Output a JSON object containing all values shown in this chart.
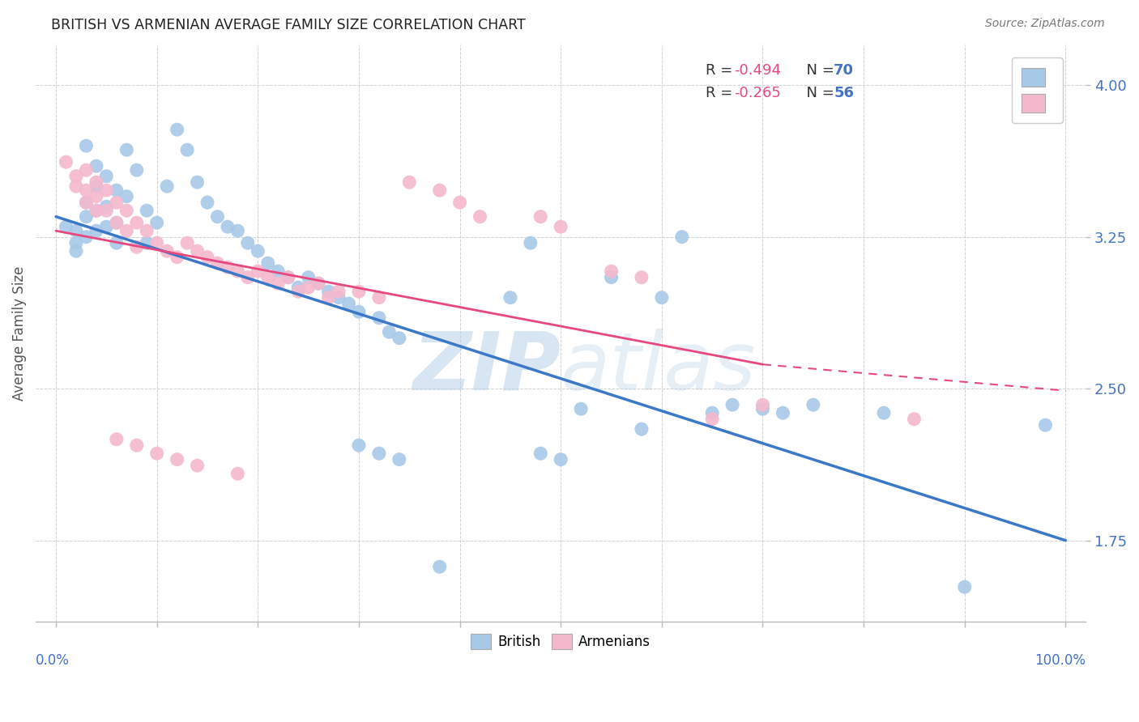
{
  "title": "BRITISH VS ARMENIAN AVERAGE FAMILY SIZE CORRELATION CHART",
  "source": "Source: ZipAtlas.com",
  "ylabel": "Average Family Size",
  "yticks": [
    1.75,
    2.5,
    3.25,
    4.0
  ],
  "xlim": [
    -0.02,
    1.02
  ],
  "ylim": [
    1.35,
    4.2
  ],
  "british_color": "#a8c8e8",
  "armenian_color": "#f4b8cc",
  "british_line_color": "#3c78c8",
  "armenian_line_color": "#e84880",
  "ytick_color": "#4472c4",
  "legend_text_color": "#222222",
  "legend_R_color": "#e84880",
  "legend_N_color": "#4472c4",
  "british_scatter": [
    [
      0.01,
      3.3
    ],
    [
      0.02,
      3.28
    ],
    [
      0.02,
      3.22
    ],
    [
      0.02,
      3.18
    ],
    [
      0.03,
      3.7
    ],
    [
      0.03,
      3.42
    ],
    [
      0.03,
      3.35
    ],
    [
      0.03,
      3.25
    ],
    [
      0.04,
      3.6
    ],
    [
      0.04,
      3.5
    ],
    [
      0.04,
      3.38
    ],
    [
      0.04,
      3.28
    ],
    [
      0.05,
      3.55
    ],
    [
      0.05,
      3.4
    ],
    [
      0.05,
      3.3
    ],
    [
      0.06,
      3.48
    ],
    [
      0.06,
      3.32
    ],
    [
      0.06,
      3.22
    ],
    [
      0.07,
      3.68
    ],
    [
      0.07,
      3.45
    ],
    [
      0.08,
      3.58
    ],
    [
      0.09,
      3.38
    ],
    [
      0.09,
      3.22
    ],
    [
      0.1,
      3.32
    ],
    [
      0.11,
      3.5
    ],
    [
      0.12,
      3.78
    ],
    [
      0.13,
      3.68
    ],
    [
      0.14,
      3.52
    ],
    [
      0.15,
      3.42
    ],
    [
      0.16,
      3.35
    ],
    [
      0.17,
      3.3
    ],
    [
      0.18,
      3.28
    ],
    [
      0.19,
      3.22
    ],
    [
      0.2,
      3.18
    ],
    [
      0.21,
      3.12
    ],
    [
      0.22,
      3.08
    ],
    [
      0.23,
      3.05
    ],
    [
      0.24,
      3.0
    ],
    [
      0.25,
      3.05
    ],
    [
      0.26,
      3.02
    ],
    [
      0.27,
      2.98
    ],
    [
      0.28,
      2.95
    ],
    [
      0.29,
      2.92
    ],
    [
      0.3,
      2.88
    ],
    [
      0.32,
      2.85
    ],
    [
      0.33,
      2.78
    ],
    [
      0.34,
      2.75
    ],
    [
      0.3,
      2.22
    ],
    [
      0.32,
      2.18
    ],
    [
      0.34,
      2.15
    ],
    [
      0.38,
      1.62
    ],
    [
      0.45,
      2.95
    ],
    [
      0.47,
      3.22
    ],
    [
      0.48,
      2.18
    ],
    [
      0.5,
      2.15
    ],
    [
      0.52,
      2.4
    ],
    [
      0.55,
      3.05
    ],
    [
      0.58,
      2.3
    ],
    [
      0.6,
      2.95
    ],
    [
      0.62,
      3.25
    ],
    [
      0.65,
      2.38
    ],
    [
      0.67,
      2.42
    ],
    [
      0.7,
      2.4
    ],
    [
      0.72,
      2.38
    ],
    [
      0.75,
      2.42
    ],
    [
      0.82,
      2.38
    ],
    [
      0.9,
      1.52
    ],
    [
      0.98,
      2.32
    ]
  ],
  "armenian_scatter": [
    [
      0.01,
      3.62
    ],
    [
      0.02,
      3.55
    ],
    [
      0.02,
      3.5
    ],
    [
      0.03,
      3.58
    ],
    [
      0.03,
      3.48
    ],
    [
      0.03,
      3.42
    ],
    [
      0.04,
      3.52
    ],
    [
      0.04,
      3.45
    ],
    [
      0.04,
      3.38
    ],
    [
      0.05,
      3.48
    ],
    [
      0.05,
      3.38
    ],
    [
      0.06,
      3.42
    ],
    [
      0.06,
      3.32
    ],
    [
      0.06,
      2.25
    ],
    [
      0.07,
      3.38
    ],
    [
      0.07,
      3.28
    ],
    [
      0.08,
      3.32
    ],
    [
      0.08,
      3.2
    ],
    [
      0.08,
      2.22
    ],
    [
      0.09,
      3.28
    ],
    [
      0.1,
      3.22
    ],
    [
      0.1,
      2.18
    ],
    [
      0.11,
      3.18
    ],
    [
      0.12,
      3.15
    ],
    [
      0.12,
      2.15
    ],
    [
      0.13,
      3.22
    ],
    [
      0.14,
      3.18
    ],
    [
      0.14,
      2.12
    ],
    [
      0.15,
      3.15
    ],
    [
      0.16,
      3.12
    ],
    [
      0.17,
      3.1
    ],
    [
      0.18,
      3.08
    ],
    [
      0.18,
      2.08
    ],
    [
      0.19,
      3.05
    ],
    [
      0.2,
      3.08
    ],
    [
      0.21,
      3.05
    ],
    [
      0.22,
      3.02
    ],
    [
      0.23,
      3.05
    ],
    [
      0.24,
      2.98
    ],
    [
      0.25,
      3.0
    ],
    [
      0.26,
      3.02
    ],
    [
      0.27,
      2.95
    ],
    [
      0.28,
      2.98
    ],
    [
      0.3,
      2.98
    ],
    [
      0.32,
      2.95
    ],
    [
      0.35,
      3.52
    ],
    [
      0.38,
      3.48
    ],
    [
      0.4,
      3.42
    ],
    [
      0.42,
      3.35
    ],
    [
      0.48,
      3.35
    ],
    [
      0.5,
      3.3
    ],
    [
      0.55,
      3.08
    ],
    [
      0.58,
      3.05
    ],
    [
      0.65,
      2.35
    ],
    [
      0.7,
      2.42
    ],
    [
      0.85,
      2.35
    ]
  ],
  "watermark_zip": "ZIP",
  "watermark_atlas": "atlas",
  "background_color": "#ffffff",
  "grid_color": "#cccccc"
}
